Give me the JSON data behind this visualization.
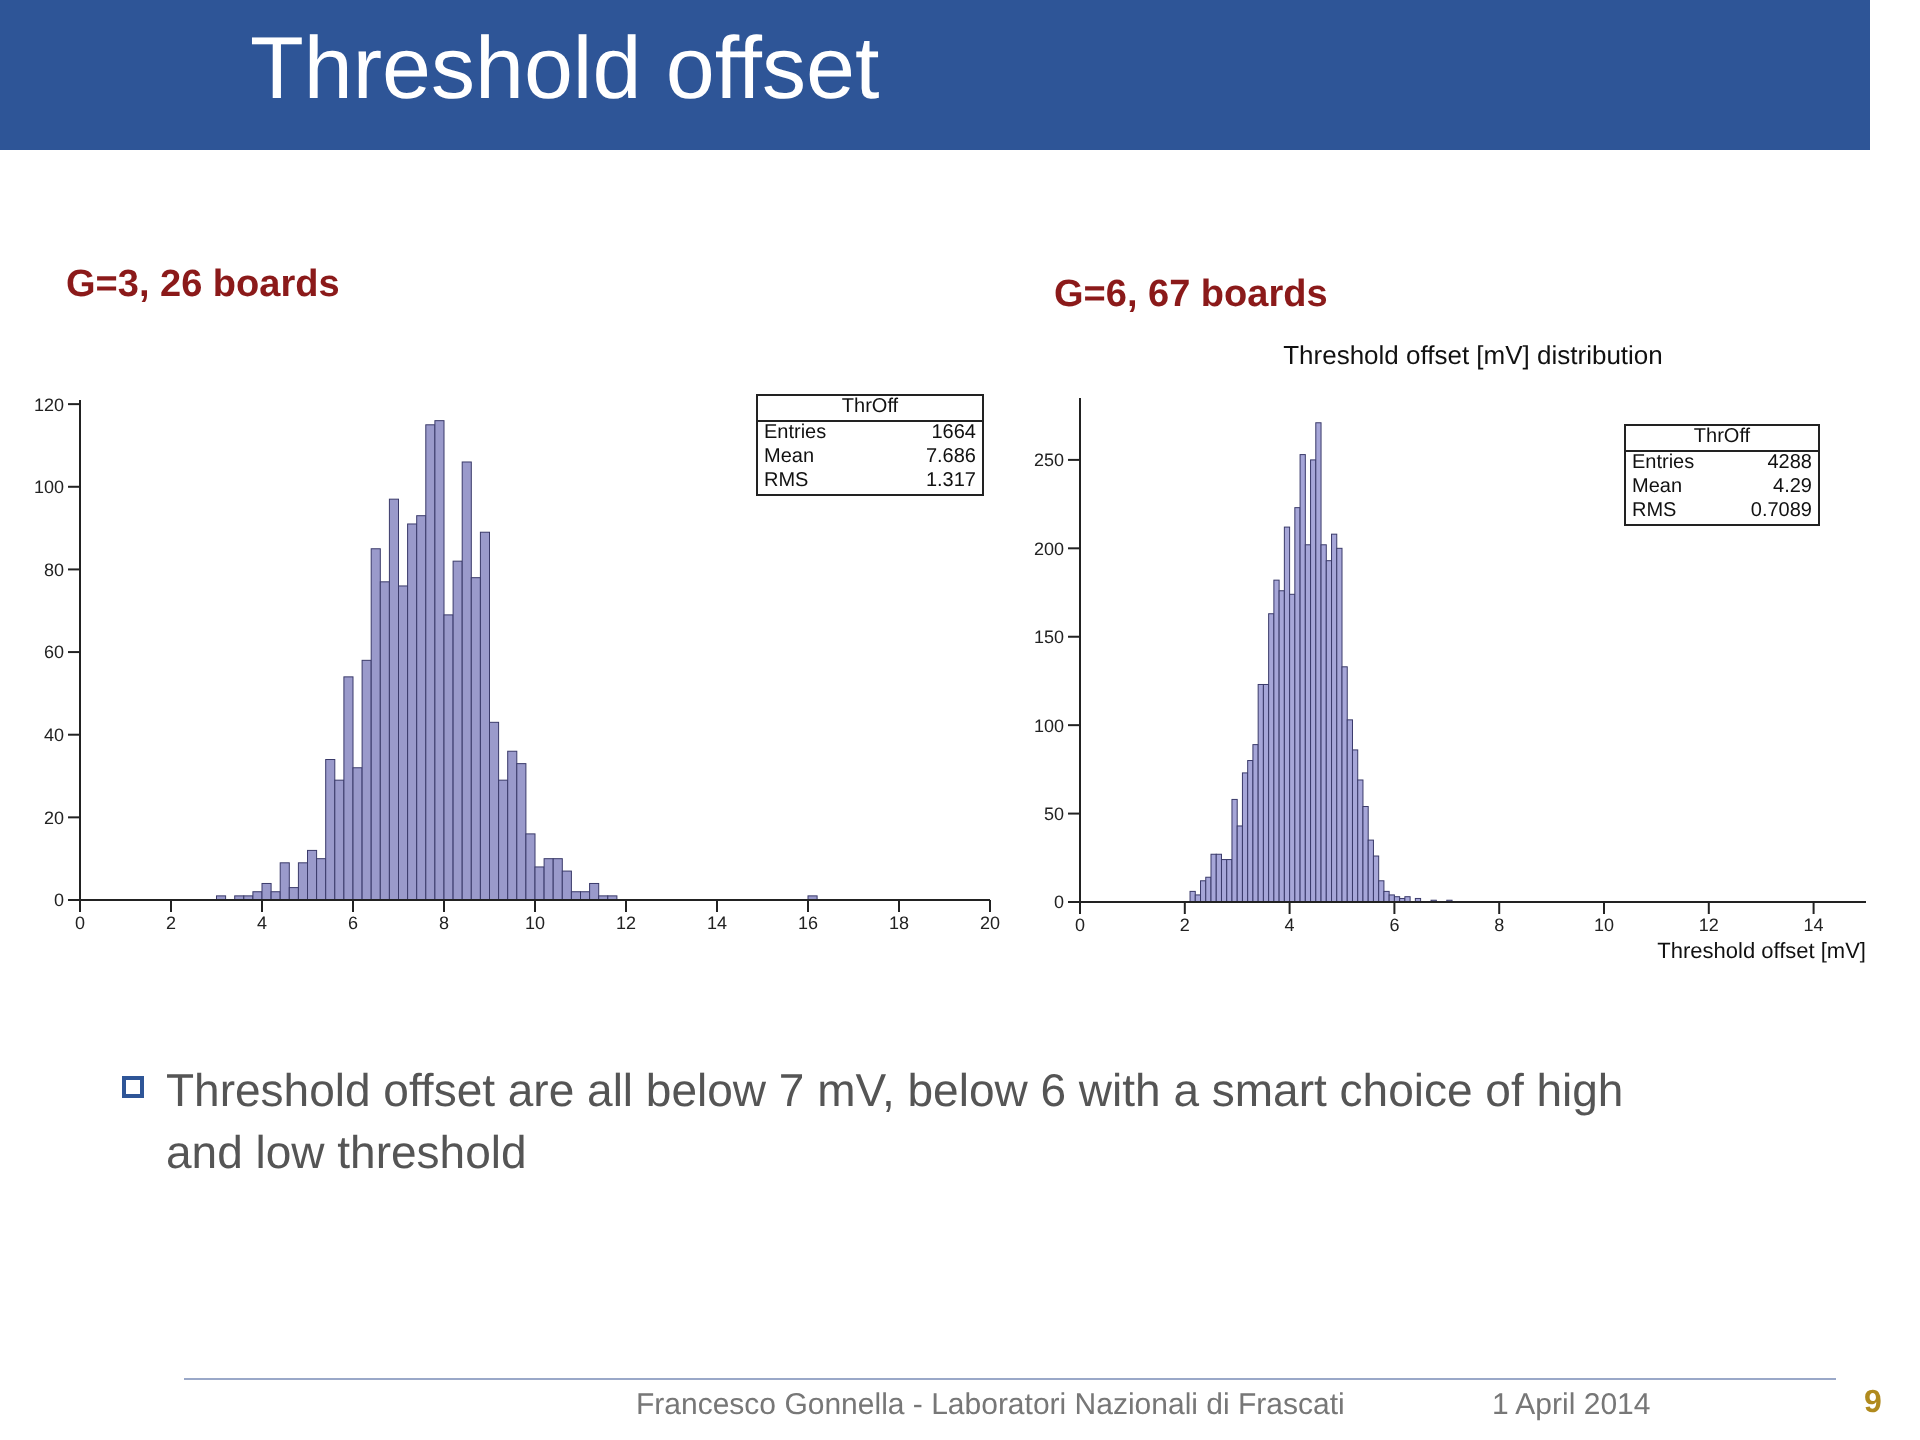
{
  "chart_data": [
    {
      "type": "other",
      "title": "Threshold offset",
      "annotations": [
        "Threshold offset are all below 7 mV, below 6 with a smart choice of high and low threshold",
        "Francesco Gonnella - Laboratori Nazionali di Frascati",
        "1 April 2014",
        "9"
      ]
    },
    {
      "type": "histogram",
      "title": "G=3, 26 boards",
      "color": "#9a9acb",
      "bins": [
        0,
        0.2,
        0.4,
        0.6,
        0.8,
        1,
        1.2,
        1.4,
        1.6,
        1.8,
        2,
        2.2,
        2.4,
        2.6,
        2.8,
        3,
        3.2,
        3.4,
        3.6,
        3.8,
        4,
        4.2,
        4.4,
        4.6,
        4.8,
        5,
        5.2,
        5.4,
        5.6,
        5.8,
        6,
        6.2,
        6.4,
        6.6,
        6.8,
        7,
        7.2,
        7.4,
        7.6,
        7.8,
        8,
        8.2,
        8.4,
        8.6,
        8.8,
        9,
        9.2,
        9.4,
        9.6,
        9.8,
        10,
        10.2,
        10.4,
        10.6,
        10.8,
        11,
        11.2,
        11.4,
        11.6,
        11.8,
        12,
        12.2,
        12.4,
        12.6,
        12.8,
        13,
        13.2,
        13.4,
        13.6,
        13.8,
        14,
        14.2,
        14.4,
        14.6,
        14.8,
        15,
        15.2,
        15.4,
        15.6,
        15.8,
        16,
        16.2,
        16.4,
        16.6,
        16.8,
        17,
        17.2,
        17.4,
        17.6,
        17.8,
        18,
        18.2,
        18.4,
        18.6,
        18.8,
        19,
        19.2,
        19.4,
        19.6,
        19.8,
        20
      ],
      "values": [
        0,
        0,
        0,
        0,
        0,
        0,
        0,
        0,
        0,
        0,
        0,
        0,
        0,
        0,
        0,
        1,
        0,
        1,
        1,
        2,
        4,
        2,
        9,
        3,
        9,
        12,
        10,
        34,
        29,
        54,
        32,
        58,
        85,
        77,
        97,
        76,
        91,
        93,
        115,
        116,
        69,
        82,
        106,
        78,
        89,
        43,
        29,
        36,
        33,
        16,
        8,
        10,
        10,
        7,
        2,
        2,
        4,
        1,
        1,
        0,
        0,
        0,
        0,
        0,
        0,
        0,
        0,
        0,
        0,
        0,
        0,
        0,
        0,
        0,
        0,
        0,
        0,
        0,
        0,
        0,
        1,
        0,
        0,
        0,
        0,
        0,
        0,
        0,
        0,
        0,
        0,
        0,
        0,
        0,
        0,
        0,
        0,
        0,
        0,
        0
      ],
      "xlim": [
        0,
        20
      ],
      "xticks": [
        0,
        2,
        4,
        6,
        8,
        10,
        12,
        14,
        16,
        18,
        20
      ],
      "ylim": [
        0,
        121
      ],
      "yticks": [
        0,
        20,
        40,
        60,
        80,
        100,
        120
      ],
      "annotations": [
        "ThrOff",
        "Entries",
        "1664",
        "Mean",
        "7.686",
        "RMS",
        "1.317"
      ]
    },
    {
      "type": "histogram",
      "title": "G=6, 67 boards",
      "subtitle": "Threshold offset [mV] distribution",
      "xlabel": "Threshold offset [mV]",
      "color": "#a6a6d8",
      "bins": [
        0,
        0.1,
        0.2,
        0.3,
        0.4,
        0.5,
        0.6,
        0.7,
        0.8,
        0.9,
        1,
        1.1,
        1.2,
        1.3,
        1.4,
        1.5,
        1.6,
        1.7,
        1.8,
        1.9,
        2,
        2.1,
        2.2,
        2.3,
        2.4,
        2.5,
        2.6,
        2.7,
        2.8,
        2.9,
        3,
        3.1,
        3.2,
        3.3,
        3.4,
        3.5,
        3.6,
        3.7,
        3.8,
        3.9,
        4,
        4.1,
        4.2,
        4.3,
        4.4,
        4.5,
        4.6,
        4.7,
        4.8,
        4.9,
        5,
        5.1,
        5.2,
        5.3,
        5.4,
        5.5,
        5.6,
        5.7,
        5.8,
        5.9,
        6,
        6.1,
        6.2,
        6.3,
        6.4,
        6.5,
        6.6,
        6.7,
        6.8,
        6.9,
        7,
        7.1,
        7.2,
        7.3,
        7.4,
        7.5,
        7.6,
        7.7,
        7.8,
        7.9,
        8,
        8.1,
        8.2,
        8.3,
        8.4,
        8.5,
        8.6,
        8.7,
        8.8,
        8.9,
        9,
        9.1,
        9.2,
        9.3,
        9.4,
        9.5,
        9.6,
        9.7,
        9.8,
        9.9,
        10,
        10.1,
        10.2,
        10.3,
        10.4,
        10.5,
        10.6,
        10.7,
        10.8,
        10.9,
        11,
        11.1,
        11.2,
        11.3,
        11.4,
        11.5,
        11.6,
        11.7,
        11.8,
        11.9,
        12,
        12.1,
        12.2,
        12.3,
        12.4,
        12.5,
        12.6,
        12.7,
        12.8,
        12.9,
        13,
        13.1,
        13.2,
        13.3,
        13.4,
        13.5,
        13.6,
        13.7,
        13.8,
        13.9,
        14,
        14.1,
        14.2,
        14.3,
        14.4,
        14.5,
        14.6,
        14.7,
        14.8,
        14.9,
        15
      ],
      "values": [
        0,
        0,
        0,
        0,
        0,
        0,
        0,
        0,
        0,
        0,
        0,
        0,
        0,
        0,
        0,
        null,
        0,
        0,
        null,
        0,
        null,
        6,
        4,
        12,
        14,
        27,
        27,
        24,
        24,
        58,
        43,
        73,
        80,
        89,
        123,
        123,
        163,
        182,
        176,
        212,
        174,
        223,
        253,
        202,
        250,
        271,
        202,
        193,
        208,
        200,
        133,
        103,
        86,
        69,
        54,
        35,
        26,
        12,
        6,
        4,
        3,
        2,
        3,
        null,
        2,
        null,
        0,
        1,
        0,
        0,
        1,
        0,
        0,
        0,
        0,
        0,
        0,
        0,
        0,
        0,
        0,
        0,
        0,
        0,
        0,
        0,
        0,
        0,
        0,
        0,
        0,
        0,
        0,
        0,
        0,
        0,
        0,
        0,
        0,
        0,
        0,
        0,
        0,
        0,
        0,
        0,
        0,
        0,
        0,
        0,
        0,
        0,
        0,
        0,
        0,
        0,
        0,
        0,
        0,
        0,
        0,
        0,
        0,
        0,
        0,
        0,
        0,
        0,
        0,
        0,
        0,
        0,
        0,
        0,
        0,
        0,
        0,
        0,
        0,
        0,
        0,
        0,
        0,
        0,
        0,
        0,
        0,
        0,
        0,
        0
      ],
      "xlim": [
        0,
        15
      ],
      "xticks": [
        0,
        2,
        4,
        6,
        8,
        10,
        12,
        14
      ],
      "ylim": [
        0,
        285
      ],
      "yticks": [
        0,
        50,
        100,
        150,
        200,
        250
      ],
      "annotations": [
        "ThrOff",
        "Entries",
        "4288",
        "Mean",
        "4.29",
        "RMS",
        "0.7089"
      ]
    }
  ]
}
